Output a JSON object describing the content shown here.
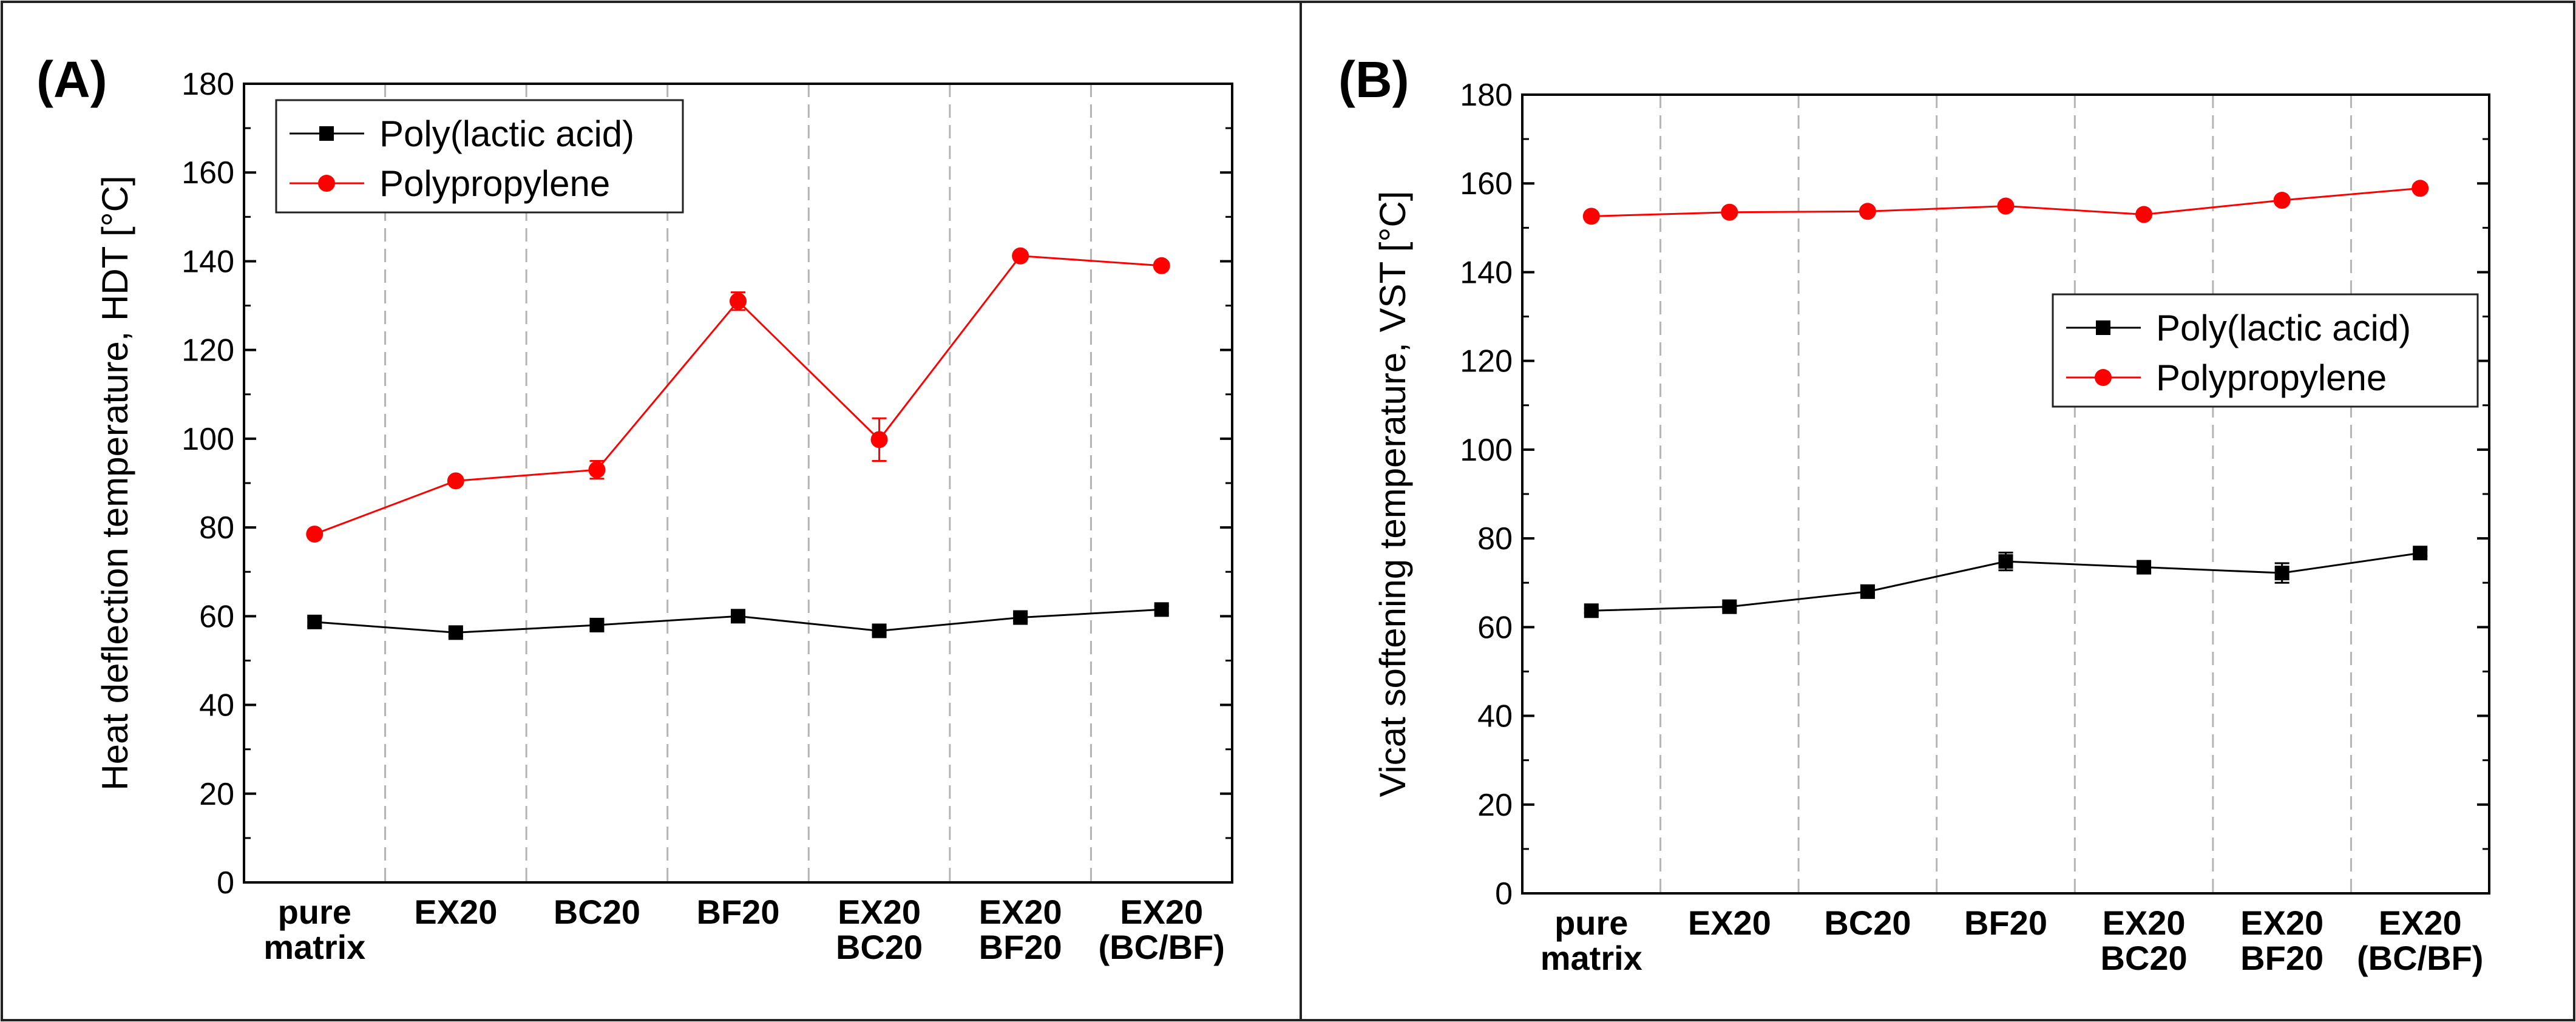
{
  "chart_data": [
    {
      "type": "line",
      "panel_label": "(A)",
      "title": "",
      "xlabel": "",
      "ylabel": "Heat deflection temperature, HDT [°C]",
      "ylim": [
        0,
        180
      ],
      "yticks": [
        "0",
        "20",
        "40",
        "60",
        "80",
        "100",
        "120",
        "140",
        "160",
        "180"
      ],
      "categories": [
        [
          "pure",
          "matrix"
        ],
        [
          "EX20"
        ],
        [
          "BC20"
        ],
        [
          "BF20"
        ],
        [
          "EX20",
          "BC20"
        ],
        [
          "EX20",
          "BF20"
        ],
        [
          "EX20",
          "(BC/BF)"
        ]
      ],
      "legend_position": "top-left",
      "series": [
        {
          "name": "Poly(lactic acid)",
          "color": "#000000",
          "marker": "square",
          "values": [
            58.7,
            56.3,
            58.0,
            60.0,
            56.7,
            59.7,
            61.5
          ],
          "errors": [
            1.0,
            0.8,
            0.8,
            0.7,
            0.8,
            0.8,
            0.8
          ]
        },
        {
          "name": "Polypropylene",
          "color": "#ff0000",
          "marker": "circle",
          "values": [
            78.5,
            90.5,
            93.0,
            131.0,
            99.8,
            141.2,
            139.0
          ],
          "errors": [
            0.8,
            0.8,
            2.0,
            2.0,
            4.8,
            0.8,
            0.8
          ]
        }
      ]
    },
    {
      "type": "line",
      "panel_label": "(B)",
      "title": "",
      "xlabel": "",
      "ylabel": "Vicat softening temperature, VST [°C]",
      "ylim": [
        0,
        180
      ],
      "yticks": [
        "0",
        "20",
        "40",
        "60",
        "80",
        "100",
        "120",
        "140",
        "160",
        "180"
      ],
      "categories": [
        [
          "pure",
          "matrix"
        ],
        [
          "EX20"
        ],
        [
          "BC20"
        ],
        [
          "BF20"
        ],
        [
          "EX20",
          "BC20"
        ],
        [
          "EX20",
          "BF20"
        ],
        [
          "EX20",
          "(BC/BF)"
        ]
      ],
      "legend_position": "center-right",
      "series": [
        {
          "name": "Poly(lactic acid)",
          "color": "#000000",
          "marker": "square",
          "values": [
            63.7,
            64.6,
            68.0,
            74.8,
            73.5,
            72.2,
            76.7
          ],
          "errors": [
            0.5,
            0.5,
            0.5,
            2.0,
            1.2,
            2.2,
            0.7
          ]
        },
        {
          "name": "Polypropylene",
          "color": "#ff0000",
          "marker": "circle",
          "values": [
            152.6,
            153.5,
            153.7,
            154.9,
            153.0,
            156.2,
            158.9
          ],
          "errors": [
            0.5,
            0.5,
            0.5,
            0.5,
            0.5,
            0.5,
            0.5
          ]
        }
      ]
    }
  ]
}
